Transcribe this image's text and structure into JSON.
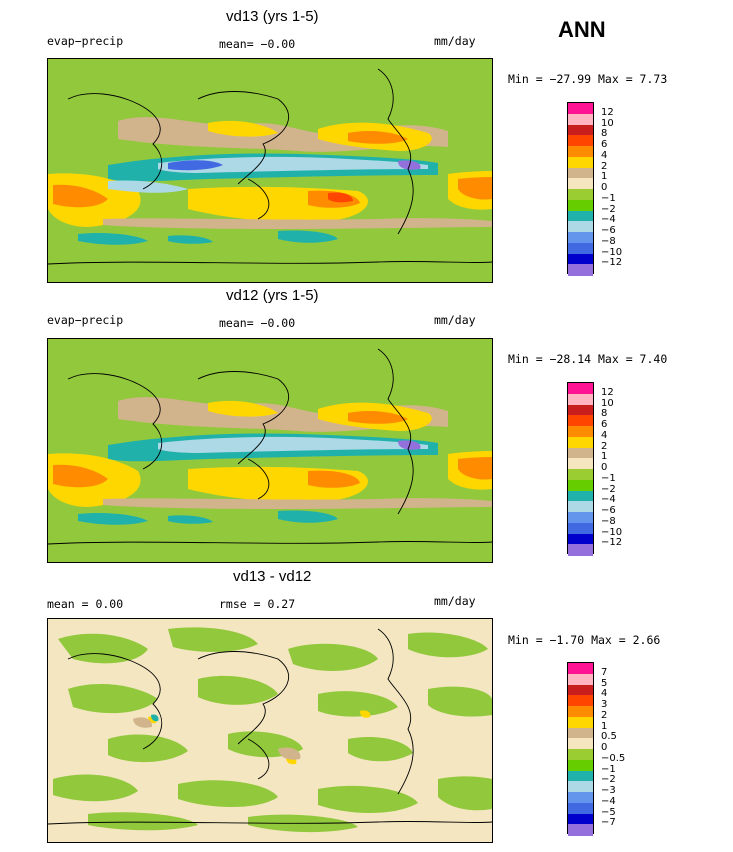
{
  "season": "ANN",
  "panels": [
    {
      "title": "vd13 (yrs 1-5)",
      "left_label": "evap−precip",
      "center_label": "mean=   −0.00",
      "right_label": "mm/day",
      "minmax": "Min = −27.99 Max =   7.73",
      "colorbar_labels": [
        "12",
        "10",
        "8",
        "6",
        "4",
        "2",
        "1",
        "0",
        "−1",
        "−2",
        "−4",
        "−6",
        "−8",
        "−10",
        "−12"
      ],
      "background": "#92c83c"
    },
    {
      "title": "vd12 (yrs 1-5)",
      "left_label": "evap−precip",
      "center_label": "mean=   −0.00",
      "right_label": "mm/day",
      "minmax": "Min = −28.14 Max =   7.40",
      "colorbar_labels": [
        "12",
        "10",
        "8",
        "6",
        "4",
        "2",
        "1",
        "0",
        "−1",
        "−2",
        "−4",
        "−6",
        "−8",
        "−10",
        "−12"
      ],
      "background": "#92c83c"
    },
    {
      "title": "vd13 - vd12",
      "left_label": "mean =   0.00",
      "center_label": "rmse =   0.27",
      "right_label": "mm/day",
      "minmax": "Min = −1.70 Max =   2.66",
      "colorbar_labels": [
        "7",
        "5",
        "4",
        "3",
        "2",
        "1",
        "0.5",
        "0",
        "−0.5",
        "−1",
        "−2",
        "−3",
        "−4",
        "−5",
        "−7"
      ],
      "background": "#f3e6c0"
    }
  ],
  "colorbar_colors": [
    "#ff1493",
    "#ffb6c1",
    "#c81e1e",
    "#ff4500",
    "#ff8c00",
    "#ffd700",
    "#d2b48c",
    "#f5e6c0",
    "#9acd32",
    "#66cd00",
    "#20b2aa",
    "#add8e6",
    "#6495ed",
    "#4169e1",
    "#0000cd",
    "#9370db"
  ]
}
